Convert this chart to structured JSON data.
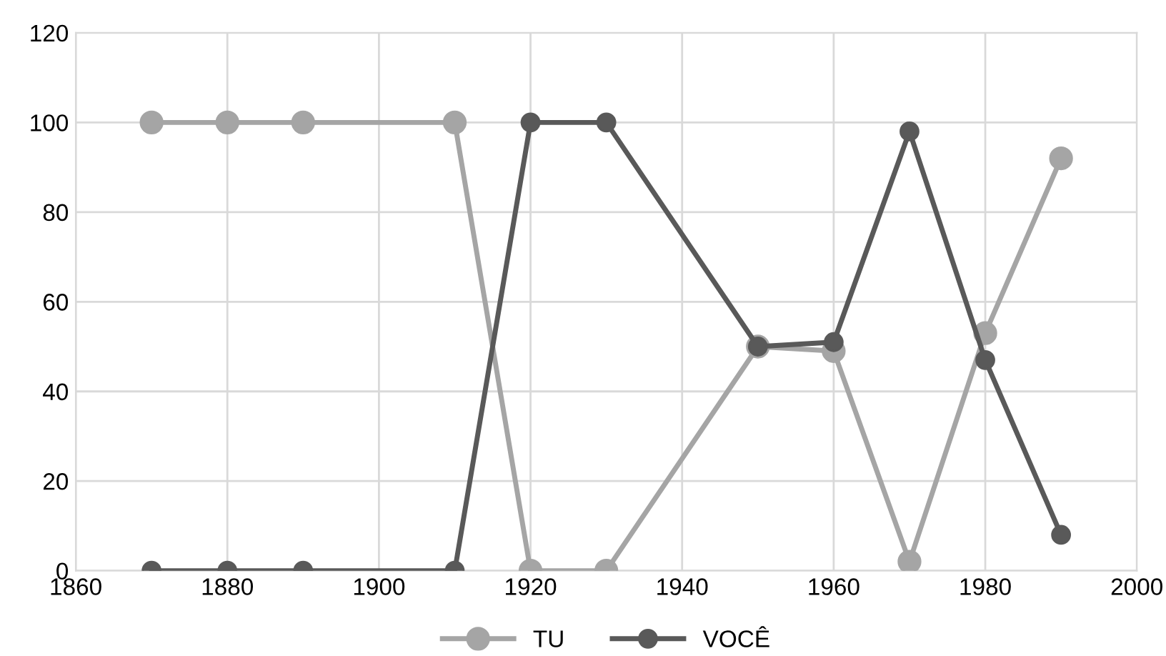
{
  "chart_data": {
    "type": "line",
    "x": [
      1870,
      1880,
      1890,
      1910,
      1920,
      1930,
      1950,
      1960,
      1970,
      1980,
      1990
    ],
    "series": [
      {
        "name": "TU",
        "color": "#a5a5a5",
        "values": [
          100,
          100,
          100,
          100,
          0,
          0,
          50,
          49,
          2,
          53,
          92
        ]
      },
      {
        "name": "VOCÊ",
        "color": "#595959",
        "values": [
          0,
          0,
          0,
          0,
          100,
          100,
          50,
          51,
          98,
          47,
          8
        ]
      }
    ],
    "xlim": [
      1860,
      2000
    ],
    "xticks": [
      1860,
      1880,
      1900,
      1920,
      1940,
      1960,
      1980,
      2000
    ],
    "ylim": [
      0,
      120
    ],
    "yticks": [
      0,
      20,
      40,
      60,
      80,
      100,
      120
    ],
    "grid": true,
    "legend": "bottom",
    "marker": "circle",
    "line_style": "solid"
  }
}
